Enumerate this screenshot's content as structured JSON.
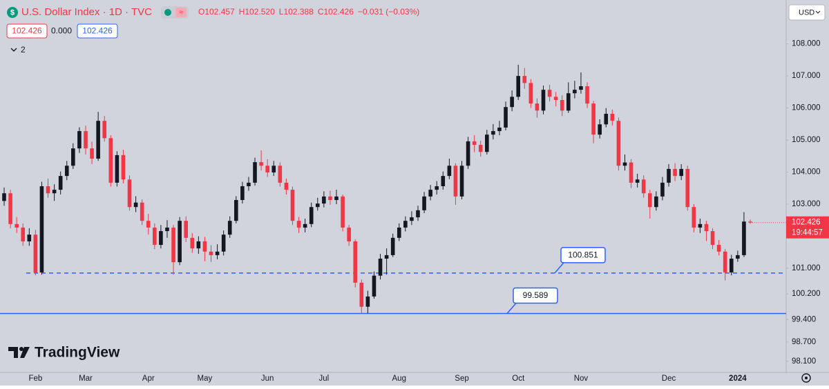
{
  "chart_data": {
    "type": "candlestick",
    "title": "U.S. Dollar Index · 1D · TVC",
    "ohlc_legend": [
      "O102.457",
      "H102.520",
      "L102.388",
      "C102.426",
      "−0.031 (−0.03%)"
    ],
    "quote_boxes": [
      "102.426",
      "0.000",
      "102.426"
    ],
    "indicator_count": "2",
    "currency": "USD",
    "brand": "TradingView",
    "up_color": "#131722",
    "down_color": "#f23645",
    "categories": [
      null,
      null,
      null,
      null,
      null,
      "Feb",
      null,
      null,
      null,
      null,
      null,
      null,
      null,
      "Mar",
      null,
      null,
      null,
      null,
      null,
      null,
      null,
      null,
      null,
      "Apr",
      null,
      null,
      null,
      null,
      null,
      null,
      null,
      null,
      "May",
      null,
      null,
      null,
      null,
      null,
      null,
      null,
      null,
      null,
      "Jun",
      null,
      null,
      null,
      null,
      null,
      null,
      null,
      null,
      "Jul",
      null,
      null,
      null,
      null,
      null,
      null,
      null,
      null,
      null,
      null,
      null,
      "Aug",
      null,
      null,
      null,
      null,
      null,
      null,
      null,
      null,
      null,
      "Sep",
      null,
      null,
      null,
      null,
      null,
      null,
      null,
      null,
      "Oct",
      null,
      null,
      null,
      null,
      null,
      null,
      null,
      null,
      null,
      "Nov",
      null,
      null,
      null,
      null,
      null,
      null,
      null,
      null,
      null,
      null,
      null,
      null,
      null,
      "Dec",
      null,
      null,
      null,
      null,
      null,
      null,
      null,
      null,
      null,
      null,
      "2024",
      null,
      null
    ],
    "open": [
      103.1,
      103.34,
      102.38,
      102.27,
      101.84,
      102.05,
      100.87,
      103.56,
      103.34,
      103.45,
      103.88,
      104.2,
      104.74,
      105.28,
      104.74,
      104.42,
      105.6,
      105.06,
      103.67,
      104.53,
      103.77,
      102.91,
      103.05,
      102.48,
      102.27,
      101.73,
      102.16,
      102.27,
      101.19,
      102.48,
      101.95,
      101.62,
      101.84,
      101.52,
      101.41,
      101.52,
      102.05,
      102.48,
      103.13,
      103.56,
      103.67,
      104.31,
      104.2,
      103.99,
      104.2,
      103.67,
      103.45,
      102.48,
      102.27,
      102.38,
      102.91,
      103.02,
      103.24,
      103.13,
      103.24,
      102.27,
      101.84,
      100.55,
      99.8,
      100.12,
      100.77,
      101.3,
      101.41,
      101.95,
      102.27,
      102.48,
      102.59,
      102.81,
      103.24,
      103.45,
      103.56,
      103.88,
      104.2,
      103.24,
      104.2,
      104.96,
      104.85,
      104.63,
      105.17,
      105.28,
      105.39,
      106.03,
      106.35,
      107.0,
      106.78,
      106.14,
      105.92,
      106.57,
      106.35,
      106.25,
      105.92,
      106.46,
      106.57,
      106.68,
      106.14,
      105.17,
      105.49,
      105.82,
      105.6,
      104.2,
      104.3,
      103.67,
      103.77,
      103.34,
      102.91,
      103.24,
      103.67,
      104.1,
      103.88,
      104.1,
      102.91,
      102.27,
      102.38,
      102.16,
      101.73,
      101.52,
      100.87,
      101.3,
      101.41,
      102.457
    ],
    "high": [
      103.52,
      103.45,
      102.6,
      102.4,
      102.25,
      102.2,
      103.7,
      103.8,
      103.62,
      104.02,
      104.35,
      104.9,
      105.4,
      105.45,
      104.95,
      105.88,
      105.75,
      105.15,
      104.65,
      104.7,
      103.9,
      103.25,
      103.15,
      102.7,
      102.4,
      102.35,
      102.5,
      102.35,
      102.6,
      102.62,
      102.1,
      102.0,
      101.98,
      101.72,
      101.75,
      102.18,
      102.62,
      103.25,
      103.7,
      103.85,
      104.45,
      104.68,
      104.4,
      104.35,
      104.3,
      103.8,
      103.55,
      102.6,
      102.55,
      103.05,
      103.2,
      103.4,
      103.42,
      103.45,
      103.3,
      102.35,
      101.9,
      100.65,
      100.3,
      100.9,
      101.45,
      101.62,
      102.08,
      102.4,
      102.62,
      102.78,
      102.95,
      103.38,
      103.6,
      103.72,
      104.02,
      104.42,
      104.28,
      104.35,
      105.1,
      105.15,
      104.98,
      105.32,
      105.5,
      105.6,
      106.2,
      106.55,
      107.35,
      107.25,
      106.9,
      106.3,
      106.7,
      106.72,
      106.5,
      106.4,
      106.8,
      106.85,
      107.11,
      106.8,
      106.22,
      105.65,
      106.0,
      105.95,
      105.7,
      104.55,
      104.4,
      103.95,
      103.9,
      103.45,
      103.4,
      103.85,
      104.25,
      104.28,
      104.25,
      104.2,
      103.0,
      102.55,
      102.48,
      102.25,
      101.88,
      101.6,
      101.42,
      101.55,
      102.75,
      102.52
    ],
    "low": [
      102.95,
      102.25,
      102.1,
      101.7,
      101.7,
      100.78,
      100.8,
      103.2,
      103.1,
      103.3,
      103.75,
      104.1,
      104.6,
      104.55,
      104.25,
      104.35,
      104.95,
      103.55,
      103.55,
      103.65,
      102.8,
      102.75,
      102.35,
      102.05,
      101.6,
      101.62,
      101.95,
      100.8,
      101.1,
      101.82,
      101.48,
      101.45,
      101.22,
      101.2,
      101.28,
      101.4,
      101.95,
      102.4,
      103.02,
      103.42,
      103.58,
      104.05,
      103.85,
      103.88,
      103.55,
      103.3,
      102.35,
      102.1,
      102.12,
      102.28,
      102.8,
      102.9,
      102.98,
      103.0,
      102.15,
      101.7,
      100.4,
      99.58,
      99.6,
      100.05,
      100.65,
      100.8,
      101.35,
      101.85,
      102.15,
      102.35,
      102.48,
      102.72,
      103.12,
      103.3,
      103.45,
      103.78,
      102.98,
      103.15,
      104.1,
      104.62,
      104.48,
      104.55,
      105.02,
      105.15,
      105.3,
      105.9,
      106.25,
      106.6,
      106.0,
      105.7,
      105.8,
      106.2,
      106.05,
      105.75,
      105.85,
      106.3,
      106.45,
      106.0,
      104.9,
      105.05,
      105.4,
      105.45,
      104.05,
      104.05,
      103.5,
      103.52,
      103.2,
      102.55,
      102.8,
      103.12,
      103.55,
      103.72,
      103.75,
      102.8,
      102.12,
      102.1,
      101.85,
      101.6,
      101.4,
      100.62,
      100.78,
      101.2,
      101.35,
      102.388
    ],
    "close": [
      103.34,
      102.38,
      102.27,
      101.84,
      102.05,
      100.87,
      103.56,
      103.34,
      103.45,
      103.88,
      104.2,
      104.74,
      105.28,
      104.74,
      104.42,
      105.6,
      105.06,
      103.67,
      104.53,
      103.77,
      102.91,
      103.05,
      102.48,
      102.27,
      101.73,
      102.16,
      102.27,
      101.19,
      102.48,
      101.95,
      101.62,
      101.84,
      101.52,
      101.41,
      101.52,
      102.05,
      102.48,
      103.13,
      103.56,
      103.67,
      104.31,
      104.2,
      103.99,
      104.2,
      103.67,
      103.45,
      102.48,
      102.27,
      102.38,
      102.91,
      103.02,
      103.24,
      103.13,
      103.24,
      102.27,
      101.84,
      100.55,
      99.8,
      100.12,
      100.77,
      101.3,
      101.41,
      101.95,
      102.27,
      102.48,
      102.59,
      102.81,
      103.24,
      103.45,
      103.56,
      103.88,
      104.2,
      103.24,
      104.2,
      104.96,
      104.85,
      104.63,
      105.17,
      105.28,
      105.39,
      106.03,
      106.35,
      107.0,
      106.78,
      106.14,
      105.92,
      106.57,
      106.35,
      106.25,
      105.92,
      106.46,
      106.57,
      106.68,
      106.14,
      105.17,
      105.49,
      105.82,
      105.6,
      104.2,
      104.3,
      103.67,
      103.77,
      103.34,
      102.91,
      103.24,
      103.67,
      104.1,
      103.88,
      104.1,
      102.91,
      102.27,
      102.38,
      102.16,
      101.73,
      101.52,
      100.87,
      101.3,
      101.41,
      102.457,
      102.426
    ],
    "ylim": [
      97.75,
      109.37
    ],
    "yticks": [
      {
        "value": 108,
        "label": "108.000"
      },
      {
        "value": 107,
        "label": "107.000"
      },
      {
        "value": 106,
        "label": "106.000"
      },
      {
        "value": 105,
        "label": "105.000"
      },
      {
        "value": 104,
        "label": "104.000"
      },
      {
        "value": 103,
        "label": "103.000"
      },
      {
        "value": 101,
        "label": "101.000"
      },
      {
        "value": 100.2,
        "label": "100.200"
      },
      {
        "value": 99.4,
        "label": "99.400"
      },
      {
        "value": 98.7,
        "label": "98.700"
      },
      {
        "value": 98.1,
        "label": "98.100"
      }
    ],
    "horizontal_lines": [
      {
        "value": 100.851,
        "style": "dashed",
        "color": "#2962ff"
      },
      {
        "value": 99.589,
        "style": "solid",
        "color": "#2962ff"
      }
    ],
    "last_price": {
      "value": 102.426,
      "countdown": "19:44:57",
      "color": "#f23645"
    }
  }
}
